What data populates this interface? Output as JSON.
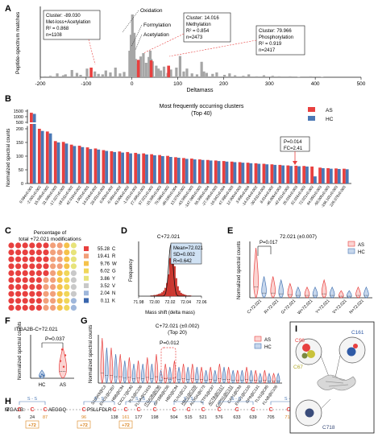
{
  "panels": {
    "A": "A",
    "B": "B",
    "C": "C",
    "D": "D",
    "E": "E",
    "F": "F",
    "G": "G",
    "H": "H",
    "I": "I"
  },
  "colors": {
    "AS": "#e8403f",
    "HC": "#4a78b5",
    "gray": "#a6a6a6",
    "red": "#e8403f",
    "peak": "#d63a32"
  },
  "chart_data": [
    {
      "id": "A",
      "type": "bar",
      "ylabel": "Peptide-spectrum matches",
      "xlabel": "Deltamass",
      "xlim": [
        -200,
        500
      ],
      "xticks": [
        "-200",
        "-100",
        "0",
        "100",
        "200",
        "300",
        "400",
        "500"
      ],
      "gray_bars": {
        "x": [
          -190,
          -178,
          -163,
          -150,
          -145,
          -131,
          -120,
          -112,
          -98,
          -81,
          -73,
          -64,
          -57,
          -47,
          -36,
          -26,
          -17,
          -5,
          -2,
          1,
          3,
          5,
          8,
          11,
          19,
          25,
          31,
          37,
          40,
          42,
          45,
          53,
          58,
          63,
          70,
          78,
          85,
          97,
          105,
          113,
          120,
          131,
          142,
          152,
          157,
          163,
          176,
          185,
          202,
          213,
          225,
          243,
          255,
          272,
          288,
          307,
          321,
          345,
          364,
          390,
          415
        ],
        "y": [
          2,
          3,
          8,
          4,
          6,
          15,
          9,
          5,
          18,
          12,
          7,
          6,
          14,
          10,
          20,
          8,
          11,
          55,
          88,
          130,
          75,
          92,
          38,
          28,
          43,
          50,
          30,
          42,
          55,
          38,
          33,
          24,
          18,
          14,
          22,
          9,
          16,
          20,
          44,
          12,
          18,
          8,
          6,
          32,
          12,
          9,
          7,
          10,
          5,
          8,
          4,
          3,
          6,
          2,
          4,
          3,
          2,
          2,
          1,
          2,
          1
        ]
      },
      "red_bars": {
        "x": [
          -89.03,
          14.016,
          42.01,
          79.966
        ],
        "y": [
          20,
          36,
          35,
          24
        ]
      },
      "annotations": {
        "cluster_neg89": {
          "line1": "Cluster: -89.030",
          "line2": "Met-loss+Acetylation",
          "line3": "R² = 0.868",
          "line4": "n=1108"
        },
        "oxidation": "Oxidation",
        "formylation": "Formylation",
        "acetylation": "Acetylation",
        "cluster_14": {
          "line1": "Cluster: 14.016",
          "line2": "Methylation",
          "line3": "R² = 0.854",
          "line4": "n=2473"
        },
        "cluster_80": {
          "line1": "Cluster: 79.966",
          "line2": "Phosphorylation",
          "line3": "R² = 0.919",
          "line4": "n=2417"
        }
      }
    },
    {
      "id": "B",
      "type": "bar",
      "title": "Most frequently occurring clusters",
      "subtitle": "(Top 40)",
      "ylabel": "Normalized spectral counts",
      "legend": [
        "AS",
        "HC"
      ],
      "legend_position": "top-right",
      "yticks_low": [
        "0",
        "50",
        "100",
        "150",
        "200"
      ],
      "yticks_high": [
        "500",
        "1000",
        "1500"
      ],
      "y_break": [
        250,
        400
      ],
      "categories": [
        "0.984±0.001",
        "-2.001±0.002",
        "15.995±0.002",
        "31.990±0.003",
        "-17.027±0.003",
        "-18.011±0.002",
        "42.010±0.002",
        "1.002±0.001",
        "14.016±0.002",
        "28.031±0.003",
        "0.003±0.002",
        "-0.984±0.002",
        "43.006±0.002",
        "-1.031±0.002",
        "27.995±0.003",
        "57.021±0.002",
        "-15.995±0.003",
        "79.966±0.002",
        "-89.030±0.004",
        "13.979±0.002",
        "-43.990±0.003",
        "-147.068±0.003",
        "55.990±0.004",
        "-27.995±0.003",
        "-19.042±0.004",
        "47.985±0.003",
        "12.000±0.003",
        "3.995±0.004",
        "-14.016±0.002",
        "-30.011±0.003",
        "8.014±0.002",
        "-46.006±0.003",
        "-42.011±0.002",
        "26.016±0.003",
        "32.016±0.003",
        "72.021±0.002",
        "64.050±0.003",
        "-58.005±0.003",
        "-156.101±0.003",
        "226.078±0.003"
      ],
      "series": [
        {
          "name": "AS",
          "values": [
            1350,
            200,
            190,
            155,
            152,
            142,
            138,
            132,
            128,
            122,
            118,
            117,
            115,
            112,
            110,
            107,
            104,
            101,
            96,
            93,
            91,
            88,
            86,
            84,
            82,
            80,
            78,
            76,
            74,
            72,
            70,
            68,
            66,
            65,
            64,
            62,
            58,
            56,
            55,
            54
          ]
        },
        {
          "name": "HC",
          "values": [
            1250,
            192,
            183,
            150,
            146,
            137,
            133,
            126,
            124,
            119,
            115,
            113,
            110,
            108,
            106,
            103,
            100,
            97,
            94,
            90,
            88,
            86,
            84,
            82,
            80,
            78,
            76,
            74,
            72,
            70,
            68,
            66,
            64,
            63,
            62,
            26,
            56,
            54,
            53,
            52
          ]
        }
      ],
      "annotation": {
        "p": "P=0.014",
        "fc": "FC=2.41"
      }
    },
    {
      "id": "C",
      "type": "waffle",
      "title_line1": "Percentage of",
      "title_line2": "total +72.021 modifications",
      "rows": 10,
      "cols": 10,
      "legend": [
        {
          "pct": "55.28",
          "res": "C",
          "color": "#e8403f"
        },
        {
          "pct": "19.41",
          "res": "R",
          "color": "#f2a07a"
        },
        {
          "pct": "9.76",
          "res": "W",
          "color": "#f5c24a"
        },
        {
          "pct": "6.02",
          "res": "G",
          "color": "#f0d658"
        },
        {
          "pct": "3.86",
          "res": "Y",
          "color": "#e7e37a"
        },
        {
          "pct": "3.52",
          "res": "V",
          "color": "#c9c9c9"
        },
        {
          "pct": "2.04",
          "res": "N",
          "color": "#9fb7db"
        },
        {
          "pct": "0.11",
          "res": "K",
          "color": "#3a66ad"
        }
      ]
    },
    {
      "id": "D",
      "type": "histogram",
      "title": "C+72.021",
      "xlabel": "Mass shift (delta mass)",
      "ylabel": "Frequency",
      "xticks": [
        "71.98",
        "72.00",
        "72.02",
        "72.04",
        "72.06"
      ],
      "stats": {
        "mean": "Mean=72.021",
        "sd": "SD=0.002",
        "r": "R=0.642"
      },
      "bins_start": 71.995,
      "bin_width": 0.002,
      "counts": [
        1,
        1,
        2,
        2,
        3,
        4,
        5,
        7,
        10,
        15,
        24,
        40,
        70,
        95,
        82,
        55,
        33,
        18,
        10,
        6,
        4,
        3,
        2,
        1,
        1,
        1
      ]
    },
    {
      "id": "E",
      "type": "violin",
      "title": "72.021 (±0.007)",
      "ylabel": "Normalized spectral counts",
      "legend": [
        "AS",
        "HC"
      ],
      "categories": [
        "C+72.021",
        "R+72.021",
        "G+72.021",
        "W+72.021",
        "Y+72.021",
        "V+72.021",
        "N+72.021"
      ],
      "as_peak": [
        14,
        6,
        4,
        3,
        5,
        2,
        3
      ],
      "hc_peak": [
        6,
        5,
        3,
        3,
        3,
        2,
        3
      ],
      "annotation": "P=0.017"
    },
    {
      "id": "F",
      "type": "violin",
      "title": "ITGA2B-C+72.021",
      "ylabel": "Normalized spectral counts",
      "categories": [
        "HC",
        "AS"
      ],
      "hc_points": [
        0.1,
        0.2,
        0.15
      ],
      "as_points": [
        0.9,
        1.5,
        0.6,
        1.2
      ],
      "annotation": "P=0.037"
    },
    {
      "id": "G",
      "type": "violin",
      "title": "C+72.021 (±0.002)",
      "subtitle": "(Top 20)",
      "ylabel": "Normalized spectral counts",
      "legend": [
        "AS",
        "HC"
      ],
      "annotation": "P=0.012",
      "categories": [
        "S100A9@C3",
        "ENO1@C357",
        "HBB@C94",
        "CXCL7@C92",
        "PLS@C106",
        "FLNA@C1015",
        "ITGA2B@C96",
        "GP1BB@C56",
        "HBD@C94",
        "TLN1@C12",
        "HBA1@C105",
        "ALDOA@C73",
        "CTPS@C87",
        "ACTB@C217",
        "CAPN1@C131",
        "CAP1@C93",
        "ENO1@C120",
        "GP9@C131",
        "TLN1@C85",
        "FLNB@C105"
      ],
      "underlined": [
        6,
        10,
        13,
        14
      ],
      "as_peak": [
        14,
        11,
        9,
        8,
        7,
        8,
        9,
        6,
        7,
        6,
        6,
        5,
        5,
        6,
        5,
        4,
        5,
        4,
        4,
        3
      ],
      "hc_peak": [
        11,
        9,
        7,
        6,
        6,
        6,
        4,
        5,
        5,
        5,
        5,
        4,
        4,
        5,
        4,
        4,
        4,
        3,
        3,
        3
      ]
    }
  ],
  "panel_h": {
    "label": "ITGA2B:",
    "seq_start": "M",
    "seq_mid": "AEGGQ",
    "seq_mid2": "PSLLFDLR",
    "ss_label": "S - S",
    "positions": [
      "6",
      "24",
      "87",
      "96",
      "138",
      "161",
      "177",
      "198",
      "504",
      "515",
      "521",
      "576",
      "633",
      "639",
      "705",
      "718",
      "857",
      "911",
      "916",
      "921"
    ],
    "highlight_positions": [
      "87",
      "96",
      "161",
      "718"
    ],
    "mod_badges": [
      "+72",
      "+72",
      "+72",
      "+72"
    ]
  },
  "panel_i": {
    "c96": "C96",
    "c161": "C161",
    "c67": "C67",
    "c718": "C718"
  }
}
